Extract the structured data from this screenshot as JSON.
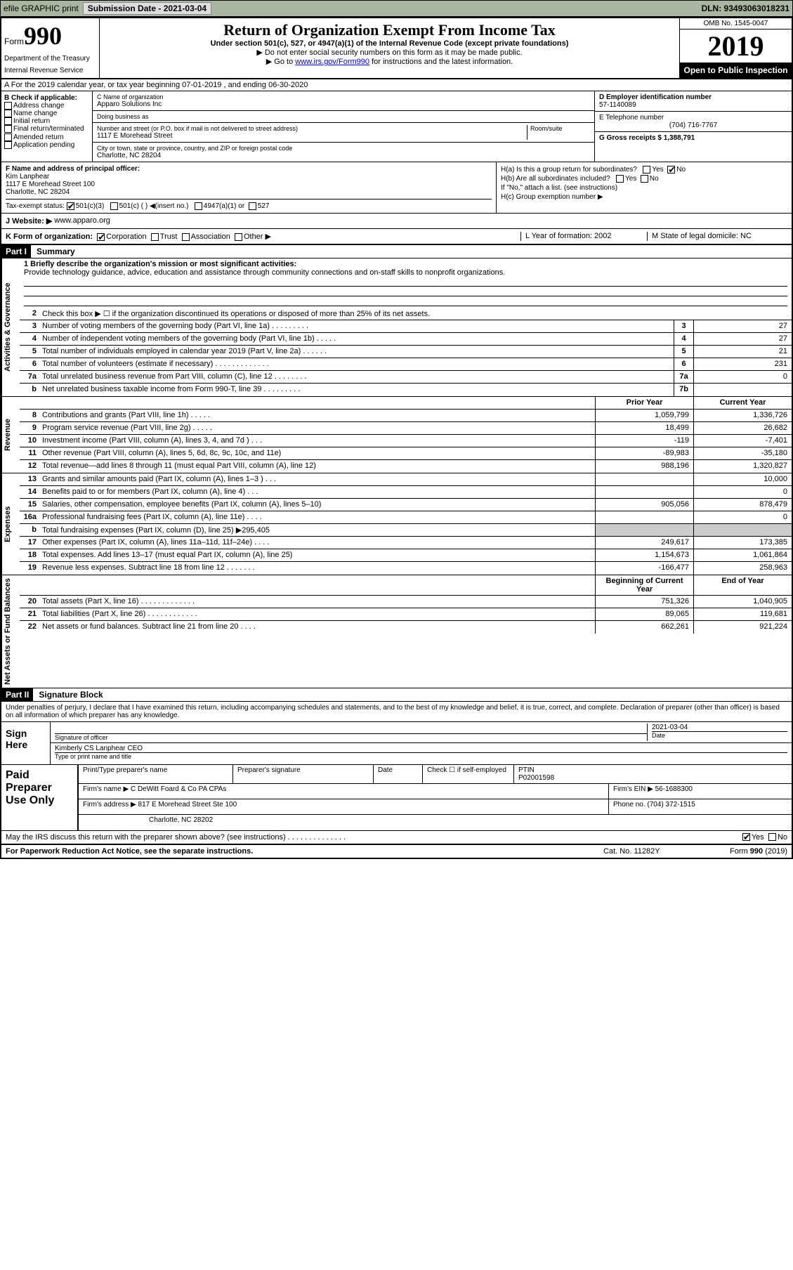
{
  "top": {
    "efile": "efile GRAPHIC print",
    "submission_label": "Submission Date - 2021-03-04",
    "dln": "DLN: 93493063018231"
  },
  "header": {
    "form_word": "Form",
    "form_num": "990",
    "dept": "Department of the Treasury",
    "irs": "Internal Revenue Service",
    "title": "Return of Organization Exempt From Income Tax",
    "sub": "Under section 501(c), 527, or 4947(a)(1) of the Internal Revenue Code (except private foundations)",
    "sub2": "▶ Do not enter social security numbers on this form as it may be made public.",
    "sub3_pre": "▶ Go to ",
    "sub3_link": "www.irs.gov/Form990",
    "sub3_post": " for instructions and the latest information.",
    "omb": "OMB No. 1545-0047",
    "year": "2019",
    "open": "Open to Public Inspection"
  },
  "rowA": "A  For the 2019 calendar year, or tax year beginning 07-01-2019    , and ending 06-30-2020",
  "colB": {
    "label": "B Check if applicable:",
    "items": [
      "Address change",
      "Name change",
      "Initial return",
      "Final return/terminated",
      "Amended return",
      "Application pending"
    ]
  },
  "colC": {
    "name_lbl": "C Name of organization",
    "name": "Apparo Solutions Inc",
    "dba_lbl": "Doing business as",
    "addr_lbl": "Number and street (or P.O. box if mail is not delivered to street address)",
    "room_lbl": "Room/suite",
    "addr": "1117 E Morehead Street",
    "city_lbl": "City or town, state or province, country, and ZIP or foreign postal code",
    "city": "Charlotte, NC  28204"
  },
  "colD": {
    "ein_lbl": "D Employer identification number",
    "ein": "57-1140089",
    "tel_lbl": "E Telephone number",
    "tel": "(704) 716-7767",
    "gross_lbl": "G Gross receipts $ 1,388,791"
  },
  "sectionF": {
    "f_lbl": "F  Name and address of principal officer:",
    "officer": "Kim Lanphear",
    "officer_addr1": "1117 E Morehead Street 100",
    "officer_addr2": "Charlotte, NC  28204",
    "tax_lbl": "Tax-exempt status:",
    "tax_501c3": "501(c)(3)",
    "tax_501c": "501(c) (  ) ◀(insert no.)",
    "tax_4947": "4947(a)(1) or",
    "tax_527": "527"
  },
  "colH": {
    "ha": "H(a)  Is this a group return for subordinates?",
    "yes": "Yes",
    "no": "No",
    "hb": "H(b)  Are all subordinates included?",
    "hb_note": "If \"No,\" attach a list. (see instructions)",
    "hc": "H(c)  Group exemption number ▶"
  },
  "rowJ": {
    "label": "J    Website: ▶",
    "value": "www.apparo.org"
  },
  "rowK": {
    "k": "K Form of organization:",
    "corp": "Corporation",
    "trust": "Trust",
    "assoc": "Association",
    "other": "Other ▶",
    "l": "L Year of formation: 2002",
    "m": "M State of legal domicile: NC"
  },
  "partI": {
    "part": "Part I",
    "title": "Summary",
    "line1_lbl": "1   Briefly describe the organization's mission or most significant activities:",
    "line1_text": "Provide technology guidance, advice, education and assistance through community connections and on-staff skills to nonprofit organizations.",
    "line2": "Check this box ▶ ☐  if the organization discontinued its operations or disposed of more than 25% of its net assets.",
    "rows_gov": [
      {
        "n": "3",
        "d": "Number of voting members of the governing body (Part VI, line 1a)  .    .    .    .    .    .    .    .    .",
        "b": "3",
        "v": "27"
      },
      {
        "n": "4",
        "d": "Number of independent voting members of the governing body (Part VI, line 1b)  .    .    .    .    .",
        "b": "4",
        "v": "27"
      },
      {
        "n": "5",
        "d": "Total number of individuals employed in calendar year 2019 (Part V, line 2a)  .    .    .    .    .    .",
        "b": "5",
        "v": "21"
      },
      {
        "n": "6",
        "d": "Total number of volunteers (estimate if necessary)    .    .    .    .    .    .    .    .    .    .    .    .    .",
        "b": "6",
        "v": "231"
      },
      {
        "n": "7a",
        "d": "Total unrelated business revenue from Part VIII, column (C), line 12  .    .    .    .    .    .    .    .",
        "b": "7a",
        "v": "0"
      },
      {
        "n": "b",
        "d": "Net unrelated business taxable income from Form 990-T, line 39    .    .    .    .    .    .    .    .    .",
        "b": "7b",
        "v": ""
      }
    ],
    "hdr_prior": "Prior Year",
    "hdr_curr": "Current Year",
    "rows_rev": [
      {
        "n": "8",
        "d": "Contributions and grants (Part VIII, line 1h)    .    .    .    .    .",
        "p": "1,059,799",
        "c": "1,336,726"
      },
      {
        "n": "9",
        "d": "Program service revenue (Part VIII, line 2g)    .    .    .    .    .",
        "p": "18,499",
        "c": "26,682"
      },
      {
        "n": "10",
        "d": "Investment income (Part VIII, column (A), lines 3, 4, and 7d )    .    .    .",
        "p": "-119",
        "c": "-7,401"
      },
      {
        "n": "11",
        "d": "Other revenue (Part VIII, column (A), lines 5, 6d, 8c, 9c, 10c, and 11e)",
        "p": "-89,983",
        "c": "-35,180"
      },
      {
        "n": "12",
        "d": "Total revenue—add lines 8 through 11 (must equal Part VIII, column (A), line 12)",
        "p": "988,196",
        "c": "1,320,827"
      }
    ],
    "rows_exp": [
      {
        "n": "13",
        "d": "Grants and similar amounts paid (Part IX, column (A), lines 1–3 )    .    .    .",
        "p": "",
        "c": "10,000"
      },
      {
        "n": "14",
        "d": "Benefits paid to or for members (Part IX, column (A), line 4)    .    .    .",
        "p": "",
        "c": "0"
      },
      {
        "n": "15",
        "d": "Salaries, other compensation, employee benefits (Part IX, column (A), lines 5–10)",
        "p": "905,056",
        "c": "878,479"
      },
      {
        "n": "16a",
        "d": "Professional fundraising fees (Part IX, column (A), line 11e)    .    .    .    .",
        "p": "",
        "c": "0"
      },
      {
        "n": "b",
        "d": "Total fundraising expenses (Part IX, column (D), line 25) ▶295,405",
        "p": "",
        "c": "",
        "shade": true
      },
      {
        "n": "17",
        "d": "Other expenses (Part IX, column (A), lines 11a–11d, 11f–24e)    .    .    .    .",
        "p": "249,617",
        "c": "173,385"
      },
      {
        "n": "18",
        "d": "Total expenses. Add lines 13–17 (must equal Part IX, column (A), line 25)",
        "p": "1,154,673",
        "c": "1,061,864"
      },
      {
        "n": "19",
        "d": "Revenue less expenses. Subtract line 18 from line 12  .    .    .    .    .    .    .",
        "p": "-166,477",
        "c": "258,963"
      }
    ],
    "hdr_boy": "Beginning of Current Year",
    "hdr_eoy": "End of Year",
    "rows_net": [
      {
        "n": "20",
        "d": "Total assets (Part X, line 16)  .    .    .    .    .    .    .    .    .    .    .    .    .",
        "p": "751,326",
        "c": "1,040,905"
      },
      {
        "n": "21",
        "d": "Total liabilities (Part X, line 26)  .    .    .    .    .    .    .    .    .    .    .    .",
        "p": "89,065",
        "c": "119,681"
      },
      {
        "n": "22",
        "d": "Net assets or fund balances. Subtract line 21 from line 20    .    .    .    .",
        "p": "662,261",
        "c": "921,224"
      }
    ],
    "side_gov": "Activities & Governance",
    "side_rev": "Revenue",
    "side_exp": "Expenses",
    "side_net": "Net Assets or Fund Balances"
  },
  "partII": {
    "part": "Part II",
    "title": "Signature Block",
    "perjury": "Under penalties of perjury, I declare that I have examined this return, including accompanying schedules and statements, and to the best of my knowledge and belief, it is true, correct, and complete. Declaration of preparer (other than officer) is based on all information of which preparer has any knowledge.",
    "sign_here": "Sign Here",
    "sig_officer_lbl": "Signature of officer",
    "sig_date_lbl": "Date",
    "sig_date": "2021-03-04",
    "officer_name": "Kimberly CS Lanphear  CEO",
    "officer_name_lbl": "Type or print name and title"
  },
  "paid": {
    "label": "Paid Preparer Use Only",
    "prep_name_lbl": "Print/Type preparer's name",
    "prep_sig_lbl": "Preparer's signature",
    "date_lbl": "Date",
    "check_lbl": "Check ☐ if self-employed",
    "ptin_lbl": "PTIN",
    "ptin": "P02001598",
    "firm_name_lbl": "Firm's name    ▶",
    "firm_name": "C DeWitt Foard & Co PA CPAs",
    "firm_ein_lbl": "Firm's EIN ▶",
    "firm_ein": "56-1688300",
    "firm_addr_lbl": "Firm's address ▶",
    "firm_addr1": "817 E Morehead Street Ste 100",
    "firm_addr2": "Charlotte, NC  28202",
    "phone_lbl": "Phone no.",
    "phone": "(704) 372-1515"
  },
  "footer": {
    "q": "May the IRS discuss this return with the preparer shown above? (see instructions)    .    .    .    .    .    .    .    .    .    .    .    .    .    .",
    "yes": "Yes",
    "no": "No",
    "paperwork": "For Paperwork Reduction Act Notice, see the separate instructions.",
    "cat": "Cat. No. 11282Y",
    "form": "Form 990 (2019)"
  }
}
